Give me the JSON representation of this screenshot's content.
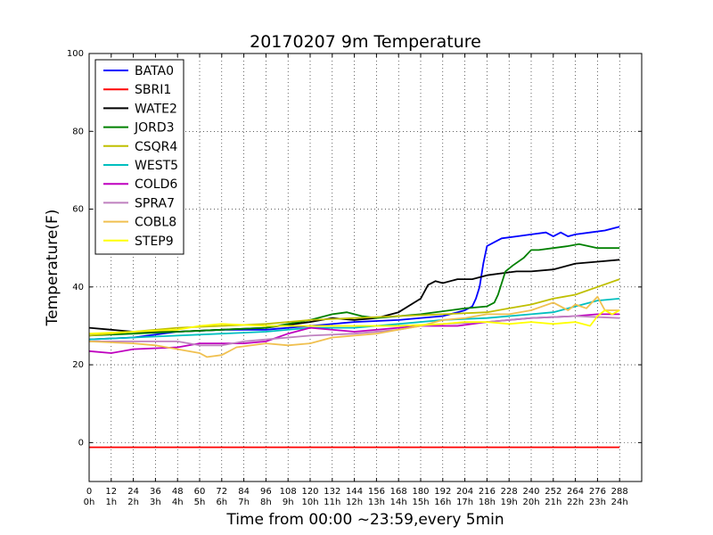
{
  "chart_data": {
    "type": "line",
    "title": "20170207 9m Temperature",
    "xlabel": "Time from 00:00 ~23:59,every 5min",
    "ylabel": "Temperature(F)",
    "xlim": [
      0,
      300
    ],
    "ylim": [
      -10,
      100
    ],
    "grid": true,
    "legend_position": "top-left",
    "x_ticks": [
      {
        "value": 0,
        "line1": "0",
        "line2": "0h"
      },
      {
        "value": 12,
        "line1": "12",
        "line2": "1h"
      },
      {
        "value": 24,
        "line1": "24",
        "line2": "2h"
      },
      {
        "value": 36,
        "line1": "36",
        "line2": "3h"
      },
      {
        "value": 48,
        "line1": "48",
        "line2": "4h"
      },
      {
        "value": 60,
        "line1": "60",
        "line2": "5h"
      },
      {
        "value": 72,
        "line1": "72",
        "line2": "6h"
      },
      {
        "value": 84,
        "line1": "84",
        "line2": "7h"
      },
      {
        "value": 96,
        "line1": "96",
        "line2": "8h"
      },
      {
        "value": 108,
        "line1": "108",
        "line2": "9h"
      },
      {
        "value": 120,
        "line1": "120",
        "line2": "10h"
      },
      {
        "value": 132,
        "line1": "132",
        "line2": "11h"
      },
      {
        "value": 144,
        "line1": "144",
        "line2": "12h"
      },
      {
        "value": 156,
        "line1": "156",
        "line2": "13h"
      },
      {
        "value": 168,
        "line1": "168",
        "line2": "14h"
      },
      {
        "value": 180,
        "line1": "180",
        "line2": "15h"
      },
      {
        "value": 192,
        "line1": "192",
        "line2": "16h"
      },
      {
        "value": 204,
        "line1": "204",
        "line2": "17h"
      },
      {
        "value": 216,
        "line1": "216",
        "line2": "18h"
      },
      {
        "value": 228,
        "line1": "228",
        "line2": "19h"
      },
      {
        "value": 240,
        "line1": "240",
        "line2": "20h"
      },
      {
        "value": 252,
        "line1": "252",
        "line2": "21h"
      },
      {
        "value": 264,
        "line1": "264",
        "line2": "22h"
      },
      {
        "value": 276,
        "line1": "276",
        "line2": "23h"
      },
      {
        "value": 288,
        "line1": "288",
        "line2": "24h"
      }
    ],
    "y_ticks": [
      0,
      20,
      40,
      60,
      80,
      100
    ],
    "series": [
      {
        "name": "BATA0",
        "color": "#0000ff",
        "points": [
          [
            0,
            26.5
          ],
          [
            24,
            27
          ],
          [
            48,
            28.5
          ],
          [
            72,
            29
          ],
          [
            96,
            29
          ],
          [
            120,
            30
          ],
          [
            144,
            31
          ],
          [
            168,
            31.5
          ],
          [
            192,
            32.5
          ],
          [
            200,
            33.5
          ],
          [
            204,
            34
          ],
          [
            208,
            35
          ],
          [
            210,
            37
          ],
          [
            212,
            40
          ],
          [
            214,
            46
          ],
          [
            216,
            50.5
          ],
          [
            220,
            51.5
          ],
          [
            224,
            52.5
          ],
          [
            232,
            53
          ],
          [
            240,
            53.5
          ],
          [
            248,
            54
          ],
          [
            252,
            53
          ],
          [
            256,
            54
          ],
          [
            260,
            53
          ],
          [
            264,
            53.5
          ],
          [
            272,
            54
          ],
          [
            280,
            54.5
          ],
          [
            288,
            55.5
          ]
        ]
      },
      {
        "name": "SBRI1",
        "color": "#ff0000",
        "points": [
          [
            0,
            -1.2
          ],
          [
            288,
            -1.2
          ]
        ]
      },
      {
        "name": "WATE2",
        "color": "#000000",
        "points": [
          [
            0,
            29.5
          ],
          [
            12,
            29
          ],
          [
            24,
            28.5
          ],
          [
            48,
            28.5
          ],
          [
            72,
            29
          ],
          [
            96,
            29.5
          ],
          [
            120,
            31
          ],
          [
            132,
            32
          ],
          [
            144,
            31.5
          ],
          [
            156,
            32
          ],
          [
            168,
            33.5
          ],
          [
            180,
            37
          ],
          [
            184,
            40.5
          ],
          [
            188,
            41.5
          ],
          [
            192,
            41
          ],
          [
            200,
            42
          ],
          [
            208,
            42
          ],
          [
            216,
            43
          ],
          [
            224,
            43.5
          ],
          [
            232,
            44
          ],
          [
            240,
            44
          ],
          [
            252,
            44.5
          ],
          [
            264,
            46
          ],
          [
            276,
            46.5
          ],
          [
            288,
            47
          ]
        ]
      },
      {
        "name": "JORD3",
        "color": "#008000",
        "points": [
          [
            0,
            27.5
          ],
          [
            24,
            28
          ],
          [
            48,
            28.5
          ],
          [
            72,
            29
          ],
          [
            96,
            29.5
          ],
          [
            120,
            31.5
          ],
          [
            132,
            33
          ],
          [
            140,
            33.5
          ],
          [
            148,
            32.5
          ],
          [
            156,
            32
          ],
          [
            180,
            33
          ],
          [
            204,
            34.5
          ],
          [
            216,
            35
          ],
          [
            220,
            36
          ],
          [
            222,
            38
          ],
          [
            226,
            44
          ],
          [
            230,
            45.5
          ],
          [
            236,
            47.5
          ],
          [
            240,
            49.5
          ],
          [
            244,
            49.5
          ],
          [
            252,
            50
          ],
          [
            260,
            50.5
          ],
          [
            266,
            51
          ],
          [
            276,
            50
          ],
          [
            288,
            50
          ]
        ]
      },
      {
        "name": "CSQR4",
        "color": "#bfbf00",
        "points": [
          [
            0,
            27.5
          ],
          [
            24,
            28.5
          ],
          [
            48,
            29.5
          ],
          [
            72,
            30
          ],
          [
            96,
            30.5
          ],
          [
            120,
            31.5
          ],
          [
            144,
            32
          ],
          [
            168,
            32.5
          ],
          [
            192,
            33
          ],
          [
            216,
            33.5
          ],
          [
            228,
            34.5
          ],
          [
            240,
            35.5
          ],
          [
            252,
            37
          ],
          [
            264,
            38
          ],
          [
            276,
            40
          ],
          [
            288,
            42
          ]
        ]
      },
      {
        "name": "WEST5",
        "color": "#00bfbf",
        "points": [
          [
            0,
            26.5
          ],
          [
            24,
            27
          ],
          [
            48,
            27.5
          ],
          [
            72,
            28
          ],
          [
            96,
            28.5
          ],
          [
            120,
            29.5
          ],
          [
            144,
            29.5
          ],
          [
            168,
            30.5
          ],
          [
            192,
            31.5
          ],
          [
            216,
            32
          ],
          [
            240,
            33
          ],
          [
            252,
            33.5
          ],
          [
            264,
            35
          ],
          [
            276,
            36.5
          ],
          [
            288,
            37
          ]
        ]
      },
      {
        "name": "COLD6",
        "color": "#bf00bf",
        "points": [
          [
            0,
            23.5
          ],
          [
            12,
            23
          ],
          [
            24,
            24
          ],
          [
            48,
            24.5
          ],
          [
            60,
            25.5
          ],
          [
            72,
            25.5
          ],
          [
            84,
            25.5
          ],
          [
            96,
            26
          ],
          [
            108,
            28
          ],
          [
            120,
            29.5
          ],
          [
            144,
            28.5
          ],
          [
            168,
            29.5
          ],
          [
            180,
            30
          ],
          [
            200,
            30
          ],
          [
            216,
            31
          ],
          [
            240,
            32
          ],
          [
            264,
            32.5
          ],
          [
            276,
            33
          ],
          [
            288,
            33
          ]
        ]
      },
      {
        "name": "SPRA7",
        "color": "#bf80bf",
        "points": [
          [
            0,
            26
          ],
          [
            24,
            26
          ],
          [
            48,
            26
          ],
          [
            60,
            25
          ],
          [
            72,
            25
          ],
          [
            84,
            26
          ],
          [
            96,
            26.5
          ],
          [
            120,
            27.5
          ],
          [
            144,
            28
          ],
          [
            168,
            29
          ],
          [
            180,
            30
          ],
          [
            192,
            30.5
          ],
          [
            216,
            31
          ],
          [
            240,
            32
          ],
          [
            264,
            32.5
          ],
          [
            288,
            32
          ]
        ]
      },
      {
        "name": "COBL8",
        "color": "#f0c050",
        "points": [
          [
            0,
            26
          ],
          [
            24,
            25.5
          ],
          [
            36,
            25
          ],
          [
            48,
            24
          ],
          [
            60,
            23
          ],
          [
            64,
            22
          ],
          [
            72,
            22.5
          ],
          [
            80,
            24.5
          ],
          [
            96,
            25.5
          ],
          [
            108,
            25
          ],
          [
            120,
            25.5
          ],
          [
            132,
            27
          ],
          [
            144,
            27.5
          ],
          [
            156,
            28
          ],
          [
            168,
            29
          ],
          [
            180,
            30
          ],
          [
            192,
            31.5
          ],
          [
            204,
            32
          ],
          [
            216,
            33
          ],
          [
            228,
            33
          ],
          [
            240,
            34
          ],
          [
            252,
            36
          ],
          [
            260,
            34
          ],
          [
            264,
            35.5
          ],
          [
            270,
            34.5
          ],
          [
            276,
            37.5
          ],
          [
            280,
            34
          ],
          [
            288,
            34
          ]
        ]
      },
      {
        "name": "STEP9",
        "color": "#ffff00",
        "points": [
          [
            0,
            28
          ],
          [
            24,
            28.5
          ],
          [
            48,
            29
          ],
          [
            60,
            30
          ],
          [
            72,
            30.5
          ],
          [
            96,
            30
          ],
          [
            120,
            30
          ],
          [
            144,
            30
          ],
          [
            168,
            30
          ],
          [
            192,
            30.5
          ],
          [
            204,
            31
          ],
          [
            216,
            31
          ],
          [
            228,
            30.5
          ],
          [
            240,
            31
          ],
          [
            252,
            30.5
          ],
          [
            264,
            31
          ],
          [
            272,
            30
          ],
          [
            276,
            32.5
          ],
          [
            280,
            34
          ],
          [
            284,
            33
          ],
          [
            288,
            34
          ]
        ]
      }
    ]
  }
}
